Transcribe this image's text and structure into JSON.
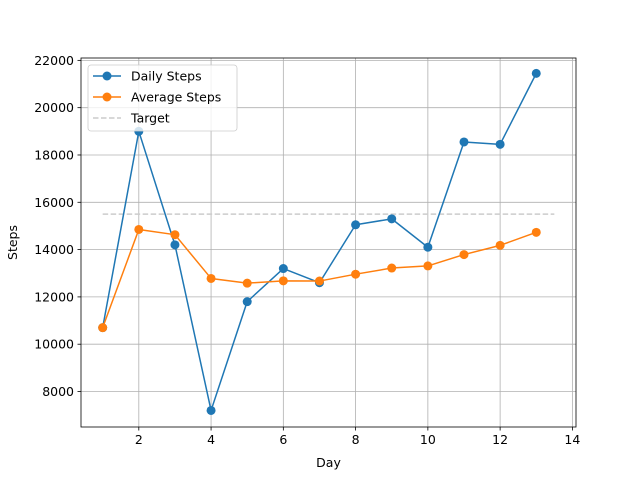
{
  "chart_data": {
    "type": "line",
    "xlabel": "Day",
    "ylabel": "Steps",
    "xlim": [
      0.4,
      14.1
    ],
    "ylim": [
      6500,
      22100
    ],
    "xticks": [
      2,
      4,
      6,
      8,
      10,
      12,
      14
    ],
    "yticks": [
      8000,
      10000,
      12000,
      14000,
      16000,
      18000,
      20000,
      22000
    ],
    "grid": true,
    "legend_position": "top-left",
    "x": [
      1,
      2,
      3,
      4,
      5,
      6,
      7,
      8,
      9,
      10,
      11,
      12,
      13
    ],
    "series": [
      {
        "name": "Daily Steps",
        "color": "#1f77b4",
        "marker": "circle",
        "values": [
          10700,
          19000,
          14200,
          7200,
          11800,
          13200,
          12600,
          15050,
          15300,
          14100,
          18550,
          18450,
          21450
        ]
      },
      {
        "name": "Average Steps",
        "color": "#ff7f0e",
        "marker": "circle",
        "values": [
          10700,
          14850,
          14630,
          12780,
          12580,
          12680,
          12670,
          12960,
          13220,
          13310,
          13790,
          14180,
          14730
        ]
      }
    ],
    "reference_lines": [
      {
        "name": "Target",
        "color": "#cccccc",
        "style": "dashed",
        "y": 15500,
        "x_range": [
          1,
          13.5
        ]
      }
    ]
  }
}
